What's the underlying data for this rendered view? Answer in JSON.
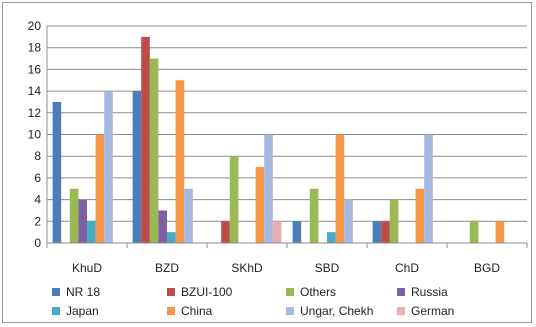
{
  "chart_data": {
    "type": "bar",
    "categories": [
      "KhuD",
      "BZD",
      "SKhD",
      "SBD",
      "ChD",
      "BGD"
    ],
    "ylim": [
      0,
      20
    ],
    "yticks": [
      0,
      2,
      4,
      6,
      8,
      10,
      12,
      14,
      16,
      18,
      20
    ],
    "grid": true,
    "legend_position": "bottom",
    "series": [
      {
        "name": "NR 18",
        "color": "#4a7ebb",
        "values": [
          13,
          14,
          0,
          2,
          2,
          0
        ]
      },
      {
        "name": "BZUI-100",
        "color": "#be4b48",
        "values": [
          0,
          19,
          2,
          0,
          2,
          0
        ]
      },
      {
        "name": "Others",
        "color": "#98b954",
        "values": [
          5,
          17,
          8,
          5,
          4,
          2
        ]
      },
      {
        "name": "Russia",
        "color": "#7d60a0",
        "values": [
          4,
          3,
          0,
          0,
          0,
          0
        ]
      },
      {
        "name": "Japan",
        "color": "#46aac5",
        "values": [
          2,
          1,
          0,
          1,
          0,
          0
        ]
      },
      {
        "name": "China",
        "color": "#f79646",
        "values": [
          10,
          15,
          7,
          10,
          5,
          2
        ]
      },
      {
        "name": "Ungar, Chekh",
        "color": "#a5b8e0",
        "values": [
          14,
          5,
          10,
          4,
          10,
          0
        ]
      },
      {
        "name": "German",
        "color": "#e6b0ad",
        "values": [
          0,
          0,
          2,
          0,
          0,
          0
        ]
      }
    ]
  }
}
